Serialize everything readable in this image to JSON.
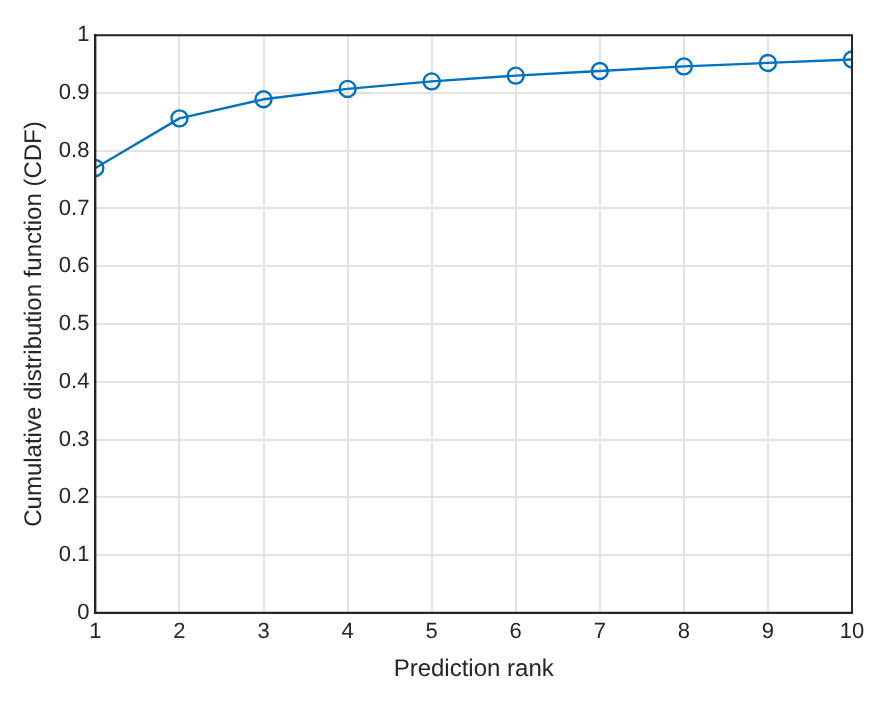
{
  "chart_data": {
    "type": "line",
    "xlabel": "Prediction rank",
    "ylabel": "Cumulative distribution function (CDF)",
    "x": [
      1,
      2,
      3,
      4,
      5,
      6,
      7,
      8,
      9,
      10
    ],
    "series": [
      {
        "color": "#0072bd",
        "values": [
          0.77,
          0.856,
          0.889,
          0.907,
          0.92,
          0.93,
          0.938,
          0.946,
          0.952,
          0.958
        ]
      }
    ],
    "xlim": [
      1,
      10
    ],
    "xticks": [
      1,
      2,
      3,
      4,
      5,
      6,
      7,
      8,
      9,
      10
    ],
    "ylim": [
      0,
      1
    ],
    "yticks": [
      0,
      0.1,
      0.2,
      0.3,
      0.4,
      0.5,
      0.6,
      0.7,
      0.8,
      0.9,
      1
    ],
    "grid": true,
    "legend": false,
    "marker": "circle",
    "line_style": "solid"
  }
}
